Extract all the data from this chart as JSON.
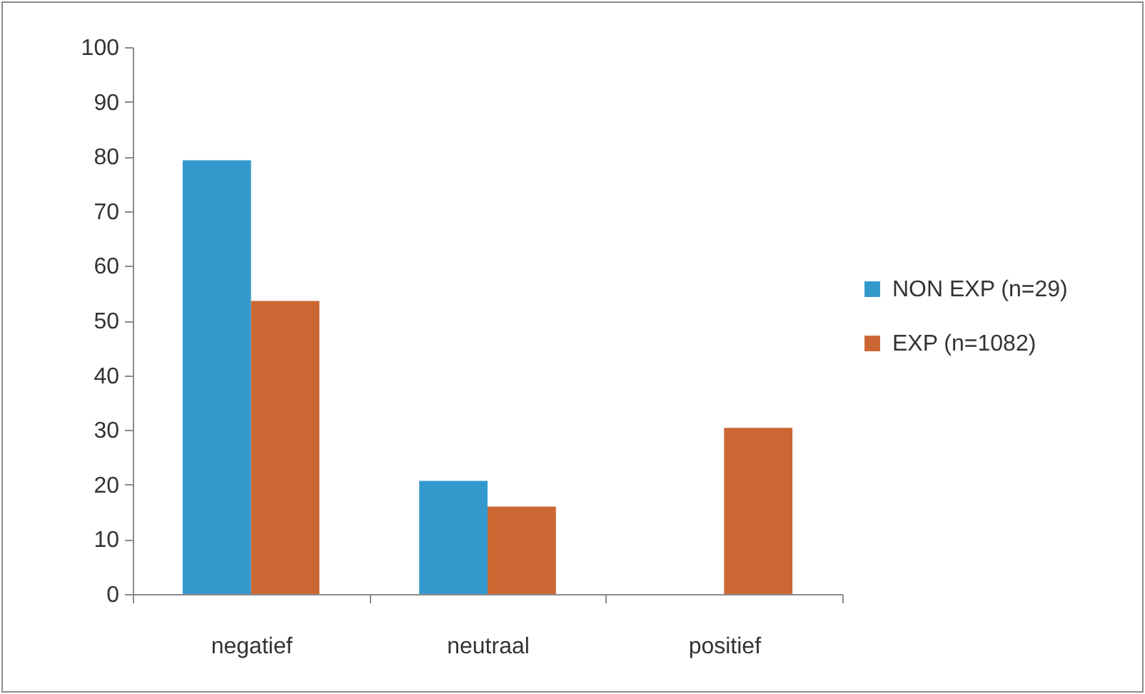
{
  "chart_data": {
    "type": "bar",
    "categories": [
      "negatief",
      "neutraal",
      "positief"
    ],
    "series": [
      {
        "name": "NON EXP (n=29)",
        "color": "#3399cc",
        "values": [
          79.3,
          20.7,
          0
        ]
      },
      {
        "name": "EXP (n=1082)",
        "color": "#cc6633",
        "values": [
          53.6,
          16.0,
          30.4
        ]
      }
    ],
    "ylim": [
      0,
      100
    ],
    "yticks": [
      0,
      10,
      20,
      30,
      40,
      50,
      60,
      70,
      80,
      90,
      100
    ],
    "grid": false,
    "legend": "right"
  }
}
